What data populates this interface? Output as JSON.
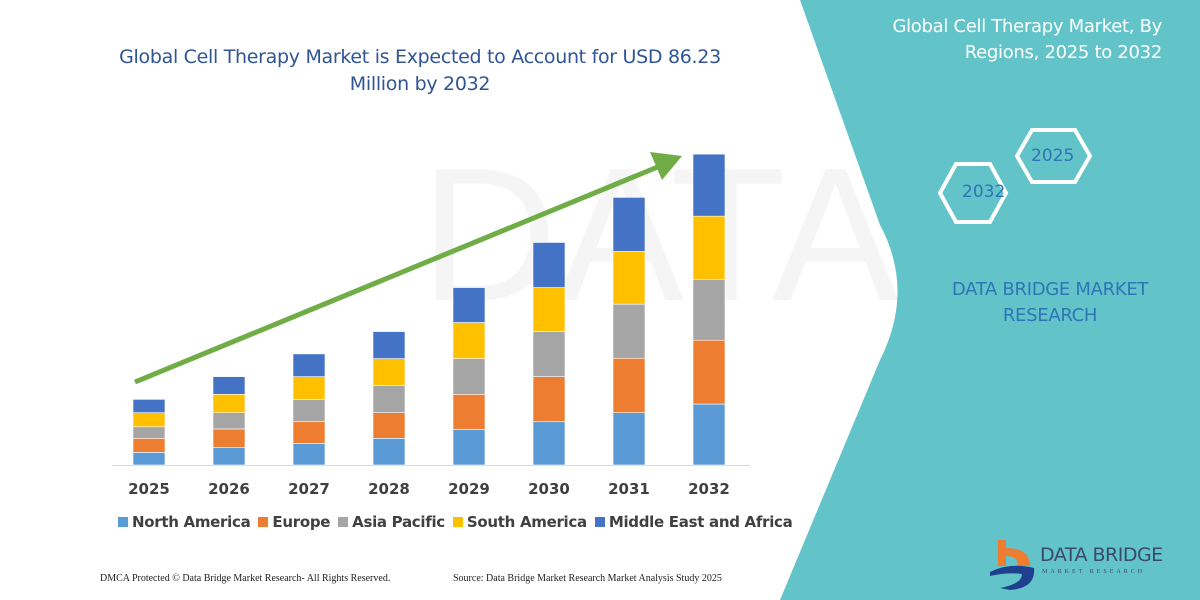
{
  "title": "Global Cell Therapy Market is Expected to Account for USD 86.23 Million by 2032",
  "side_panel": {
    "title": "Global Cell Therapy Market, By Regions, 2025 to 2032",
    "hex_start": "2025",
    "hex_end": "2032",
    "brand_text": "DATA BRIDGE MARKET RESEARCH",
    "logo_text": "DATA BRIDGE",
    "logo_subtext": "MARKET RESEARCH",
    "color": "#62c4c9"
  },
  "footer": {
    "left": "DMCA Protected © Data Bridge Market Research- All Rights Reserved.",
    "right": "Source: Data Bridge Market Research Market Analysis Study 2025"
  },
  "chart_data": {
    "type": "bar",
    "stacked": true,
    "title": "Global Cell Therapy Market is Expected to Account for USD 86.23 Million by 2032",
    "xlabel": "",
    "ylabel": "",
    "y_axis_visible": false,
    "grid": false,
    "legend_placement": "bottom",
    "trend_arrow": true,
    "trend_arrow_color": "#70ad47",
    "categories": [
      "2025",
      "2026",
      "2027",
      "2028",
      "2029",
      "2030",
      "2031",
      "2032"
    ],
    "series": [
      {
        "name": "North America",
        "color": "#5b9bd5",
        "values": [
          3.5,
          4.9,
          6.0,
          7.4,
          9.9,
          12.0,
          14.5,
          16.9
        ]
      },
      {
        "name": "Europe",
        "color": "#ed7d31",
        "values": [
          3.9,
          5.1,
          6.0,
          7.1,
          9.7,
          12.5,
          15.1,
          17.7
        ]
      },
      {
        "name": "Asia Pacific",
        "color": "#a5a5a5",
        "values": [
          3.2,
          4.5,
          6.2,
          7.5,
          9.9,
          12.5,
          15.0,
          16.9
        ]
      },
      {
        "name": "South America",
        "color": "#ffc000",
        "values": [
          3.9,
          5.1,
          6.3,
          7.5,
          10.0,
          12.2,
          14.6,
          17.5
        ]
      },
      {
        "name": "Middle East and Africa",
        "color": "#4472c4",
        "values": [
          3.7,
          4.9,
          6.3,
          7.5,
          9.7,
          12.5,
          15.0,
          17.2
        ]
      }
    ]
  }
}
